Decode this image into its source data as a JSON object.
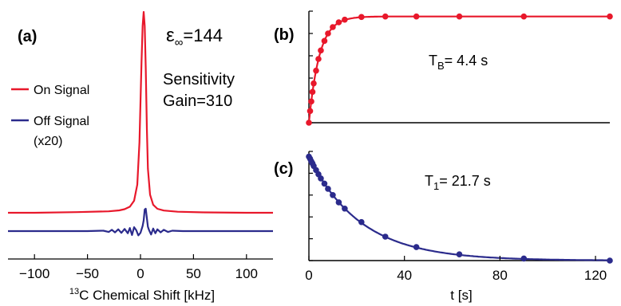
{
  "colors": {
    "on": "#e8182b",
    "off": "#2b2b8c",
    "axis": "#000000"
  },
  "chart_data": [
    {
      "panel": "(a)",
      "type": "line",
      "xlabel": "13C Chemical Shift [kHz]",
      "xlabel_sup": "13",
      "xlabel_rest": "C Chemical Shift [kHz]",
      "xlim": [
        -125,
        125
      ],
      "xticks": [
        -100,
        -50,
        0,
        50,
        100
      ],
      "xtick_labels": [
        "−100",
        "−50",
        "0",
        "50",
        "100"
      ],
      "legend_position": "left",
      "annotations": {
        "eps_symbol": "ε",
        "eps_sub": "∞",
        "eps_value": "=144",
        "sens_line1": "Sensitivity",
        "sens_line2": "Gain=310"
      },
      "series": [
        {
          "name": "On Signal",
          "color_key": "on",
          "x": [
            -125,
            -100,
            -60,
            -30,
            -20,
            -15,
            -10,
            -6,
            -3,
            -1,
            1,
            2,
            3,
            4,
            5,
            6,
            7,
            9,
            12,
            16,
            22,
            35,
            60,
            100,
            125
          ],
          "y": [
            0,
            0,
            0.003,
            0.007,
            0.012,
            0.018,
            0.03,
            0.06,
            0.14,
            0.35,
            0.75,
            0.93,
            1.0,
            0.93,
            0.72,
            0.42,
            0.22,
            0.09,
            0.04,
            0.02,
            0.011,
            0.005,
            0.002,
            0,
            0
          ]
        },
        {
          "name": "Off Signal",
          "name_line2": "(x20)",
          "color_key": "off",
          "x": [
            -125,
            -50,
            -35,
            -30,
            -27,
            -24,
            -21,
            -18,
            -15,
            -12,
            -10,
            -8,
            -6,
            -4,
            -2,
            0,
            2,
            3,
            4,
            5,
            6,
            7,
            8,
            10,
            12,
            14,
            16,
            19,
            22,
            26,
            30,
            40,
            60,
            125
          ],
          "y": [
            0,
            0,
            0.01,
            -0.02,
            0.03,
            -0.03,
            0.04,
            -0.04,
            0.05,
            -0.05,
            0.07,
            -0.09,
            0.09,
            0.02,
            -0.1,
            -0.04,
            0.12,
            0.25,
            0.5,
            0.52,
            0.3,
            0.1,
            0.03,
            -0.08,
            0.06,
            -0.05,
            0.04,
            -0.03,
            0.03,
            -0.02,
            0.01,
            0,
            0,
            0
          ]
        }
      ]
    },
    {
      "panel": "(b)",
      "type": "scatter",
      "annotation_main": "T",
      "annotation_sub": "B",
      "annotation_rest": "= 4.4 s",
      "xlim": [
        0,
        126
      ],
      "ylim": [
        0,
        1.05
      ],
      "series": [
        {
          "color_key": "on",
          "x": [
            0,
            0.5,
            1,
            1.5,
            2,
            3,
            4,
            5,
            6.5,
            8,
            10,
            12.5,
            15,
            22,
            32,
            45,
            63,
            90,
            126
          ],
          "y": [
            0,
            0.11,
            0.2,
            0.29,
            0.37,
            0.49,
            0.6,
            0.68,
            0.77,
            0.84,
            0.9,
            0.945,
            0.97,
            0.995,
            1.0,
            1.0,
            1.0,
            1.0,
            1.0
          ],
          "fit_tau": 4.4
        }
      ]
    },
    {
      "panel": "(c)",
      "type": "scatter",
      "annotation_main": "T",
      "annotation_sub": "1",
      "annotation_rest": "= 21.7 s",
      "xlabel": "t [s]",
      "xlim": [
        0,
        126
      ],
      "xticks": [
        0,
        40,
        80,
        120
      ],
      "xtick_labels": [
        "0",
        "40",
        "80",
        "120"
      ],
      "ylim": [
        0,
        1.05
      ],
      "series": [
        {
          "color_key": "off",
          "x": [
            0,
            0.5,
            1,
            1.5,
            2,
            3,
            4,
            5,
            6.5,
            8,
            10,
            12.5,
            15,
            22,
            32,
            45,
            63,
            90,
            126
          ],
          "y": [
            1.0,
            0.98,
            0.955,
            0.935,
            0.91,
            0.87,
            0.83,
            0.79,
            0.74,
            0.69,
            0.63,
            0.56,
            0.5,
            0.37,
            0.23,
            0.13,
            0.06,
            0.02,
            0.0
          ],
          "fit_tau": 21.7
        }
      ]
    }
  ]
}
